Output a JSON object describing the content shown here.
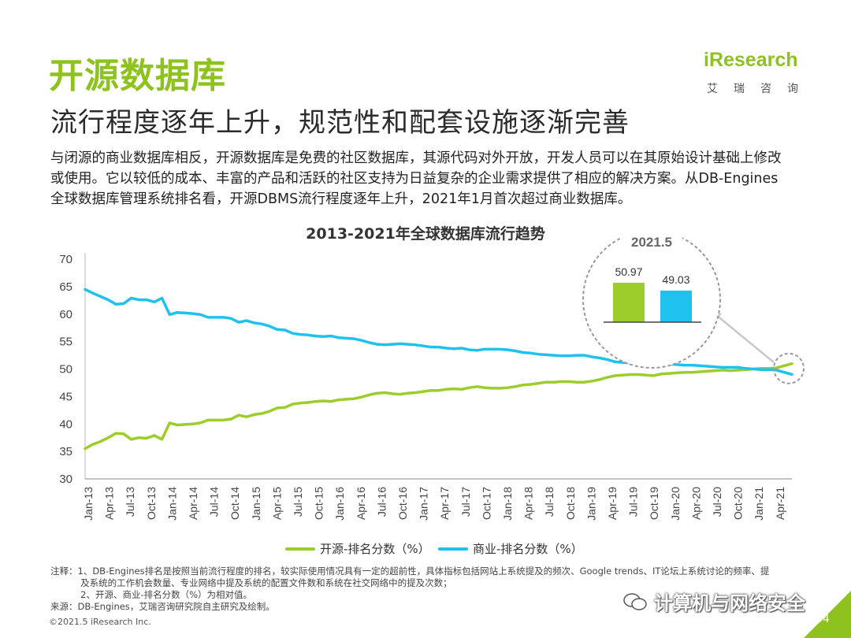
{
  "title": "开源数据库",
  "subtitle": "流行程度逐年上升，规范性和配套设施逐渐完善",
  "description": [
    "与闭源的商业数据库相反，开源数据库是免费的社区数据库，其源代码对外开放，开发人员可以在其原始设计基础上修改",
    "或使用。它以较低的成本、丰富的产品和活跃的社区支持为日益复杂的企业需求提供了相应的解决方案。从DB-Engines",
    "全球数据库管理系统排名看，开源DBMS流行程度逐年上升，2021年1月首次超过商业数据库。"
  ],
  "logo": {
    "text": "iResearch",
    "cn": "艾瑞咨询"
  },
  "colors": {
    "open_source": "#9ccd2a",
    "commercial": "#1fc2ee",
    "title_green": "#8dc21f"
  },
  "chart_data": {
    "type": "line",
    "title": "2013-2021年全球数据库流行趋势",
    "ylim": [
      30,
      70
    ],
    "yticks": [
      30,
      35,
      40,
      45,
      50,
      55,
      60,
      65,
      70
    ],
    "xtick_labels": [
      "Jan-13",
      "Apr-13",
      "Jul-13",
      "Oct-13",
      "Jan-14",
      "Apr-14",
      "Jul-14",
      "Oct-14",
      "Jan-15",
      "Apr-15",
      "Jul-15",
      "Oct-15",
      "Jan-16",
      "Apr-16",
      "Jul-16",
      "Oct-16",
      "Jan-17",
      "Apr-17",
      "Jul-17",
      "Oct-17",
      "Jan-18",
      "Apr-18",
      "Jul-18",
      "Oct-18",
      "Jan-19",
      "Apr-19",
      "Jul-19",
      "Oct-19",
      "Jan-20",
      "Apr-20",
      "Jul-20",
      "Oct-20",
      "Jan-21",
      "Apr-21"
    ],
    "series": [
      {
        "name": "开源-排名分数（%）",
        "color": "#9ccd2a",
        "values": [
          35.5,
          36.3,
          36.8,
          37.5,
          38.3,
          38.2,
          37.2,
          37.5,
          37.4,
          37.9,
          37.2,
          40.2,
          39.8,
          39.9,
          40.0,
          40.2,
          40.7,
          40.7,
          40.7,
          40.9,
          41.6,
          41.3,
          41.7,
          41.9,
          42.3,
          42.9,
          43.0,
          43.6,
          43.8,
          43.9,
          44.1,
          44.2,
          44.1,
          44.4,
          44.5,
          44.6,
          44.9,
          45.3,
          45.6,
          45.7,
          45.5,
          45.4,
          45.6,
          45.7,
          45.9,
          46.1,
          46.1,
          46.3,
          46.4,
          46.3,
          46.6,
          46.8,
          46.6,
          46.5,
          46.5,
          46.6,
          46.8,
          47.1,
          47.2,
          47.4,
          47.6,
          47.6,
          47.7,
          47.7,
          47.6,
          47.6,
          47.8,
          48.1,
          48.5,
          48.8,
          48.9,
          49.0,
          49.0,
          48.9,
          48.8,
          49.1,
          49.2,
          49.3,
          49.4,
          49.4,
          49.5,
          49.6,
          49.7,
          49.8,
          49.7,
          49.8,
          49.9,
          50.0,
          50.1,
          50.1,
          50.2,
          50.6,
          50.97
        ]
      },
      {
        "name": "商业-排名分数（%）",
        "color": "#1fc2ee",
        "values": [
          64.5,
          63.8,
          63.2,
          62.6,
          61.8,
          61.9,
          62.9,
          62.6,
          62.6,
          62.2,
          62.9,
          59.9,
          60.3,
          60.2,
          60.1,
          59.9,
          59.4,
          59.4,
          59.4,
          59.2,
          58.5,
          58.8,
          58.4,
          58.2,
          57.8,
          57.2,
          57.1,
          56.5,
          56.3,
          56.2,
          56.0,
          55.9,
          56.0,
          55.7,
          55.6,
          55.5,
          55.2,
          54.8,
          54.5,
          54.4,
          54.5,
          54.6,
          54.5,
          54.4,
          54.2,
          54.0,
          54.0,
          53.8,
          53.7,
          53.8,
          53.5,
          53.4,
          53.6,
          53.6,
          53.6,
          53.5,
          53.3,
          53.0,
          52.9,
          52.7,
          52.6,
          52.5,
          52.4,
          52.4,
          52.5,
          52.5,
          52.2,
          52.0,
          51.7,
          51.3,
          51.2,
          51.1,
          51.1,
          51.2,
          51.3,
          51.0,
          50.9,
          50.8,
          50.7,
          50.7,
          50.6,
          50.5,
          50.4,
          50.3,
          50.3,
          50.3,
          50.1,
          50.0,
          49.9,
          49.9,
          49.8,
          49.4,
          49.03
        ]
      }
    ],
    "callout": {
      "label": "2021.5",
      "bars": [
        {
          "value": 50.97,
          "label": "50.97",
          "color": "#9ccd2a"
        },
        {
          "value": 49.03,
          "label": "49.03",
          "color": "#1fc2ee"
        }
      ]
    },
    "legend": [
      {
        "label": "开源-排名分数（%）",
        "color": "#9ccd2a"
      },
      {
        "label": "商业-排名分数（%）",
        "color": "#1fc2ee"
      }
    ]
  },
  "notes": [
    "注释：1、DB-Engines排名是按照当前流行程度的排名，较实际使用情况具有一定的超前性，具体指标包括网站上系统提及的频次、Google trends、IT论坛上系统讨论的频率、提",
    "　　　 及系统的工作机会数量、专业网络中提及系统的配置文件数和系统在社交网络中的提及次数；",
    "　　　 2、开源、商业-排名分数（%）为相对值。",
    "来源：DB-Engines，艾瑞咨询研究院自主研究及绘制。"
  ],
  "footer": "©2021.5 iResearch Inc.",
  "page_number": "34",
  "watermark": "计算机与网络安全"
}
